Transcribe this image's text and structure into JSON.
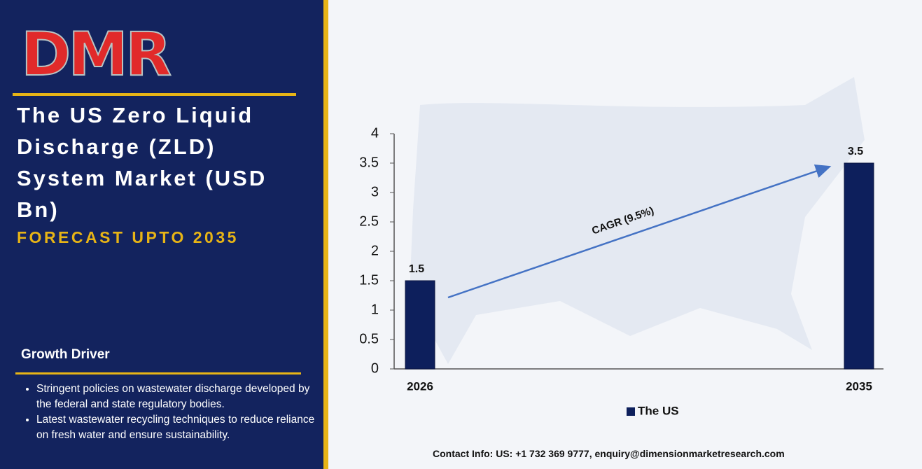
{
  "logo": "DMR",
  "header": {
    "title": "The US Zero Liquid Discharge (ZLD) System Market (USD Bn)",
    "subtitle": "FORECAST UPTO 2035"
  },
  "growth_driver": {
    "heading": "Growth Driver",
    "bullets": [
      "Stringent policies on wastewater discharge developed by the federal and state regulatory bodies.",
      "Latest wastewater recycling techniques to reduce reliance on fresh water and ensure sustainability."
    ]
  },
  "contact": "Contact Info: US: +1 732 369 9777, enquiry@dimensionmarketresearch.com",
  "chart_data": {
    "type": "bar",
    "categories": [
      "2026",
      "2035"
    ],
    "series": [
      {
        "name": "The US",
        "color": "#0d1f5c",
        "values": [
          1.5,
          3.5
        ]
      }
    ],
    "ylim": [
      0,
      4
    ],
    "yticks": [
      0,
      0.5,
      1,
      1.5,
      2,
      2.5,
      3,
      3.5,
      4
    ],
    "annotation": "CAGR (9.5%)",
    "legend": "bottom"
  }
}
